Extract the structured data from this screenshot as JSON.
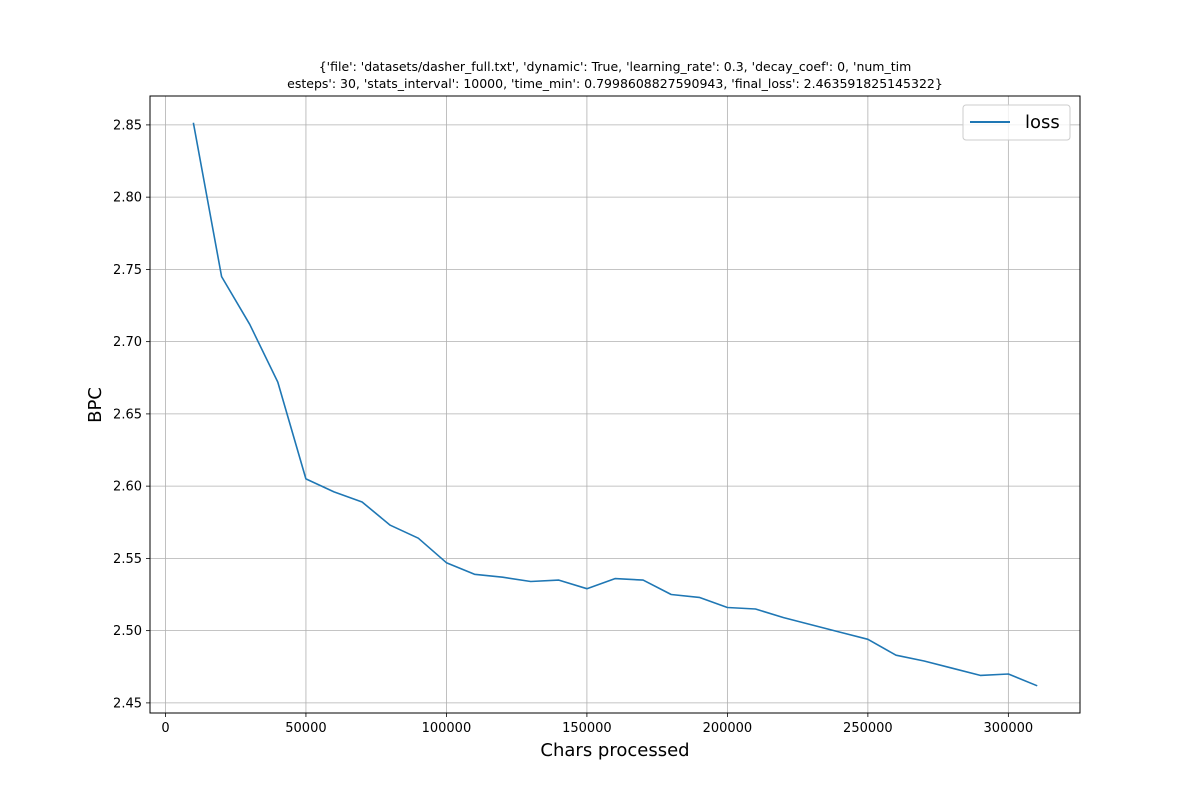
{
  "chart_data": {
    "type": "line",
    "title_lines": [
      "{'file': 'datasets/dasher_full.txt', 'dynamic': True, 'learning_rate': 0.3, 'decay_coef': 0, 'num_tim",
      "esteps': 30, 'stats_interval': 10000, 'time_min': 0.7998608827590943, 'final_loss': 2.463591825145322}"
    ],
    "xlabel": "Chars processed",
    "ylabel": "BPC",
    "xlim": [
      -5500,
      325500
    ],
    "ylim": [
      2.443,
      2.87
    ],
    "x_ticks": [
      0,
      50000,
      100000,
      150000,
      200000,
      250000,
      300000
    ],
    "x_tick_labels": [
      "0",
      "50000",
      "100000",
      "150000",
      "200000",
      "250000",
      "300000"
    ],
    "y_ticks": [
      2.45,
      2.5,
      2.55,
      2.6,
      2.65,
      2.7,
      2.75,
      2.8,
      2.85
    ],
    "y_tick_labels": [
      "2.45",
      "2.50",
      "2.55",
      "2.60",
      "2.65",
      "2.70",
      "2.75",
      "2.80",
      "2.85"
    ],
    "grid": true,
    "legend_position": "top-right",
    "series": [
      {
        "name": "loss",
        "color": "#1f77b4",
        "x": [
          10000,
          20000,
          30000,
          40000,
          50000,
          60000,
          70000,
          80000,
          90000,
          100000,
          110000,
          120000,
          130000,
          140000,
          150000,
          160000,
          170000,
          180000,
          190000,
          200000,
          210000,
          220000,
          230000,
          240000,
          250000,
          260000,
          270000,
          280000,
          290000,
          300000,
          310000
        ],
        "y": [
          2.851,
          2.745,
          2.712,
          2.672,
          2.605,
          2.596,
          2.589,
          2.573,
          2.564,
          2.547,
          2.539,
          2.537,
          2.534,
          2.535,
          2.529,
          2.536,
          2.535,
          2.525,
          2.523,
          2.516,
          2.515,
          2.509,
          2.504,
          2.499,
          2.494,
          2.483,
          2.479,
          2.474,
          2.469,
          2.47,
          2.462
        ]
      }
    ]
  }
}
